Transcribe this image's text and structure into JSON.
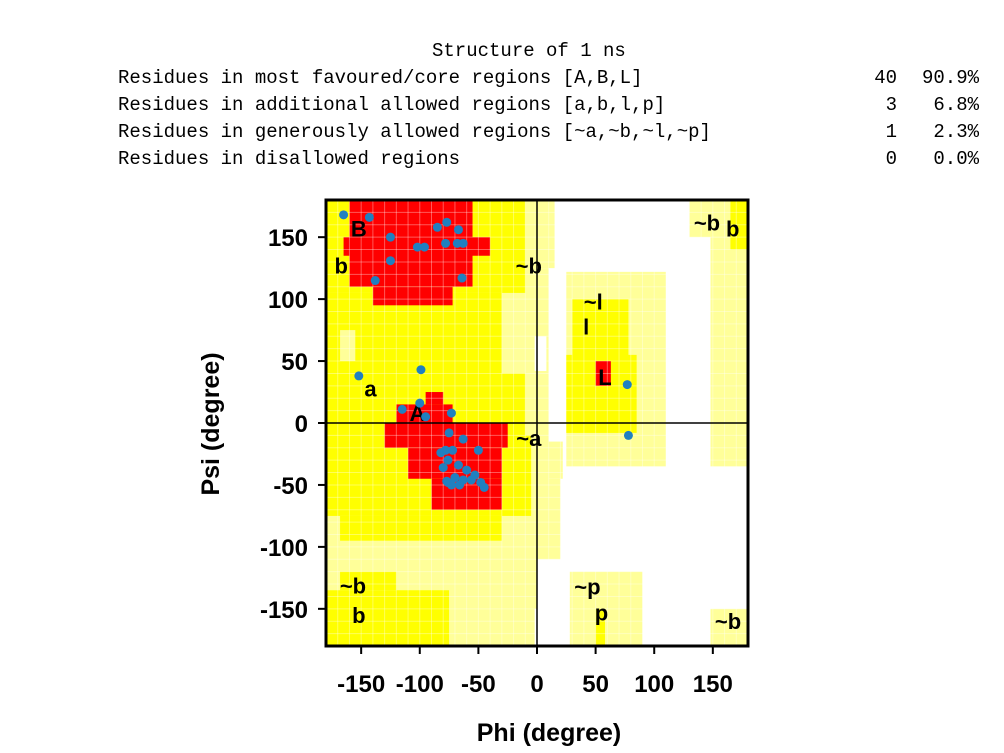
{
  "header": {
    "title": "Structure of 1 ns",
    "rows": [
      {
        "label": "Residues in most favoured/core regions [A,B,L]",
        "count": "40",
        "percent": "90.9%"
      },
      {
        "label": "Residues in additional allowed regions [a,b,l,p]",
        "count": "3",
        "percent": "6.8%"
      },
      {
        "label": "Residues in generously allowed regions [~a,~b,~l,~p]",
        "count": "1",
        "percent": "2.3%"
      },
      {
        "label": "Residues in disallowed regions",
        "count": "0",
        "percent": "0.0%"
      }
    ]
  },
  "colors": {
    "core": "#ff0000",
    "allowed": "#ffff00",
    "generous": "#ffff99",
    "disallowed": "#ffffff",
    "point": "#2080c0"
  },
  "chart_data": {
    "type": "scatter",
    "xlabel": "Phi (degree)",
    "ylabel": "Psi (degree)",
    "xlim": [
      -180,
      180
    ],
    "ylim": [
      -180,
      180
    ],
    "xticks": [
      -150,
      -100,
      -50,
      0,
      50,
      100,
      150
    ],
    "yticks": [
      150,
      100,
      50,
      0,
      -50,
      -100,
      -150
    ],
    "region_labels": [
      {
        "text": "B",
        "x": -152,
        "y": 157
      },
      {
        "text": "b",
        "x": -167,
        "y": 127
      },
      {
        "text": "~b",
        "x": -7,
        "y": 127
      },
      {
        "text": "~b",
        "x": 145,
        "y": 162
      },
      {
        "text": "b",
        "x": 167,
        "y": 157
      },
      {
        "text": "~l",
        "x": 48,
        "y": 98
      },
      {
        "text": "l",
        "x": 42,
        "y": 78
      },
      {
        "text": "L",
        "x": 58,
        "y": 37
      },
      {
        "text": "a",
        "x": -142,
        "y": 28
      },
      {
        "text": "A",
        "x": -102,
        "y": 8
      },
      {
        "text": "~a",
        "x": -7,
        "y": -12
      },
      {
        "text": "~p",
        "x": 43,
        "y": -132
      },
      {
        "text": "p",
        "x": 55,
        "y": -153
      },
      {
        "text": "~b",
        "x": -157,
        "y": -131
      },
      {
        "text": "b",
        "x": -152,
        "y": -155
      },
      {
        "text": "~b",
        "x": 163,
        "y": -160
      }
    ],
    "points": [
      [
        -165,
        168
      ],
      [
        -143,
        166
      ],
      [
        -125,
        150
      ],
      [
        -85,
        158
      ],
      [
        -77,
        162
      ],
      [
        -67,
        156
      ],
      [
        -78,
        145
      ],
      [
        -68,
        145
      ],
      [
        -63,
        145
      ],
      [
        -102,
        142
      ],
      [
        -96,
        142
      ],
      [
        -125,
        131
      ],
      [
        -138,
        115
      ],
      [
        -64,
        117
      ],
      [
        -152,
        38
      ],
      [
        -99,
        43
      ],
      [
        -100,
        16
      ],
      [
        -115,
        11
      ],
      [
        -95,
        5
      ],
      [
        -73,
        8
      ],
      [
        -75,
        -8
      ],
      [
        -63,
        -13
      ],
      [
        -78,
        -22
      ],
      [
        -72,
        -22
      ],
      [
        -82,
        -24
      ],
      [
        -50,
        -22
      ],
      [
        -76,
        -30
      ],
      [
        -67,
        -34
      ],
      [
        -80,
        -36
      ],
      [
        -60,
        -38
      ],
      [
        -53,
        -42
      ],
      [
        -70,
        -44
      ],
      [
        -76,
        -48
      ],
      [
        -63,
        -46
      ],
      [
        -56,
        -46
      ],
      [
        -48,
        -48
      ],
      [
        -45,
        -52
      ],
      [
        -73,
        -50
      ],
      [
        -66,
        -50
      ],
      [
        -77,
        -47
      ],
      [
        77,
        31
      ],
      [
        78,
        -10
      ]
    ]
  }
}
